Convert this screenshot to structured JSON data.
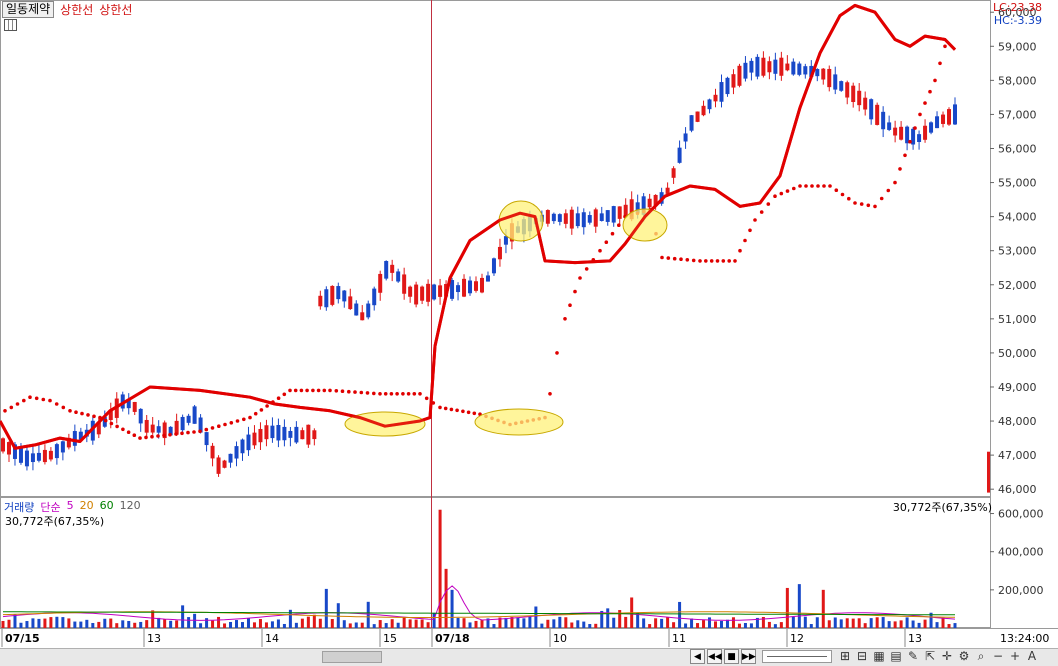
{
  "toolbar": {
    "stock_name": "일동제약",
    "indicator_1": "상한선",
    "indicator_2": "상한선"
  },
  "lc_label": "LC:23.38",
  "hc_label": "HC:-3.39",
  "volume_header": {
    "label": "거래량",
    "ma_label": "단순",
    "ma5": "5",
    "ma20": "20",
    "ma60": "60",
    "ma120": "120"
  },
  "volume_current": "30,772주(67,35%)",
  "volume_current_right": "30,772주(67,35%)",
  "time_label": "13:24:00",
  "colors": {
    "up": "#e01818",
    "down": "#1848c8",
    "envelope": "#e00000",
    "highlight": "#fff27a"
  },
  "chart_data": {
    "type": "candlestick",
    "price_axis": {
      "min": 45800,
      "max": 60300,
      "ticks": [
        46000,
        47000,
        48000,
        49000,
        50000,
        51000,
        52000,
        53000,
        54000,
        55000,
        56000,
        57000,
        58000,
        59000,
        60000
      ],
      "labels": [
        "46,000",
        "47,000",
        "48,000",
        "49,000",
        "50,000",
        "51,000",
        "52,000",
        "53,000",
        "54,000",
        "55,000",
        "56,000",
        "57,000",
        "58,000",
        "59,000",
        "60,000"
      ]
    },
    "volume_axis": {
      "min": 0,
      "max": 650000,
      "ticks": [
        200000,
        400000,
        600000
      ],
      "labels": [
        "200,000",
        "400,000",
        "600,000"
      ]
    },
    "x_labels": [
      "07/15",
      "13",
      "14",
      "15",
      "07/18",
      "10",
      "11",
      "12",
      "13"
    ],
    "bar_count": 160,
    "current_price": 57000
  }
}
